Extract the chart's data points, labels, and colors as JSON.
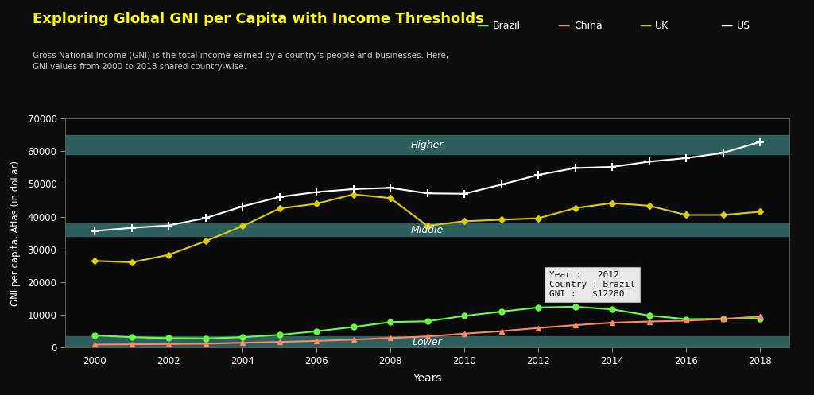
{
  "title": "Exploring Global GNI per Capita with Income Thresholds",
  "subtitle": "Gross National Income (GNI) is the total income earned by a country's people and businesses. Here,\nGNI values from 2000 to 2018 shared country-wise.",
  "xlabel": "Years",
  "ylabel": "GNI per capita, Atlas (in dollar)",
  "years": [
    2000,
    2001,
    2002,
    2003,
    2004,
    2005,
    2006,
    2007,
    2008,
    2009,
    2010,
    2011,
    2012,
    2013,
    2014,
    2015,
    2016,
    2017,
    2018
  ],
  "brazil": [
    3750,
    3200,
    2900,
    2800,
    3200,
    3900,
    5000,
    6300,
    7800,
    8040,
    9700,
    11000,
    12280,
    12500,
    11700,
    9800,
    8700,
    8800,
    8920
  ],
  "china": [
    940,
    1020,
    1100,
    1200,
    1500,
    1750,
    2050,
    2450,
    2940,
    3420,
    4270,
    5030,
    6000,
    6870,
    7620,
    7970,
    8230,
    8760,
    9470
  ],
  "uk": [
    26520,
    26060,
    28350,
    32550,
    37130,
    42500,
    43960,
    46820,
    45680,
    37210,
    38620,
    39080,
    39530,
    42630,
    44160,
    43340,
    40530,
    40530,
    41500
  ],
  "us": [
    35650,
    36590,
    37330,
    39580,
    43150,
    46040,
    47530,
    48440,
    48820,
    47140,
    47020,
    49800,
    52770,
    54860,
    55220,
    56810,
    57900,
    59500,
    62850
  ],
  "brazil_color": "#66ff44",
  "china_color": "#ff8866",
  "uk_color": "#ddcc00",
  "us_color": "#ffffff",
  "band_color": "#2d5f5f",
  "band_lower_ymin": 0,
  "band_lower_ymax": 3500,
  "band_middle_ymin": 34000,
  "band_middle_ymax": 38000,
  "band_higher_ymin": 59000,
  "band_higher_ymax": 65000,
  "band_label_lower": "Lower",
  "band_label_middle": "Middle",
  "band_label_higher": "Higher",
  "bg_color": "#111111",
  "plot_bg_color": "#0a0a0a",
  "text_color": "#ffffff",
  "title_color": "#ffff00",
  "ylim": [
    0,
    70000
  ],
  "xlim": [
    1999.2,
    2018.8
  ],
  "yticks": [
    0,
    10000,
    20000,
    30000,
    40000,
    50000,
    60000,
    70000
  ],
  "xticks": [
    2000,
    2002,
    2004,
    2006,
    2008,
    2010,
    2012,
    2014,
    2016,
    2018
  ],
  "tooltip_year": "2012",
  "tooltip_country": "Brazil",
  "tooltip_gni": "$12280",
  "tooltip_x": 2012,
  "tooltip_y": 12280,
  "legend_labels": [
    "Brazil",
    "China",
    "UK",
    "US"
  ],
  "legend_colors": [
    "#66ff44",
    "#ff8866",
    "#ddcc00",
    "#ffffff"
  ]
}
